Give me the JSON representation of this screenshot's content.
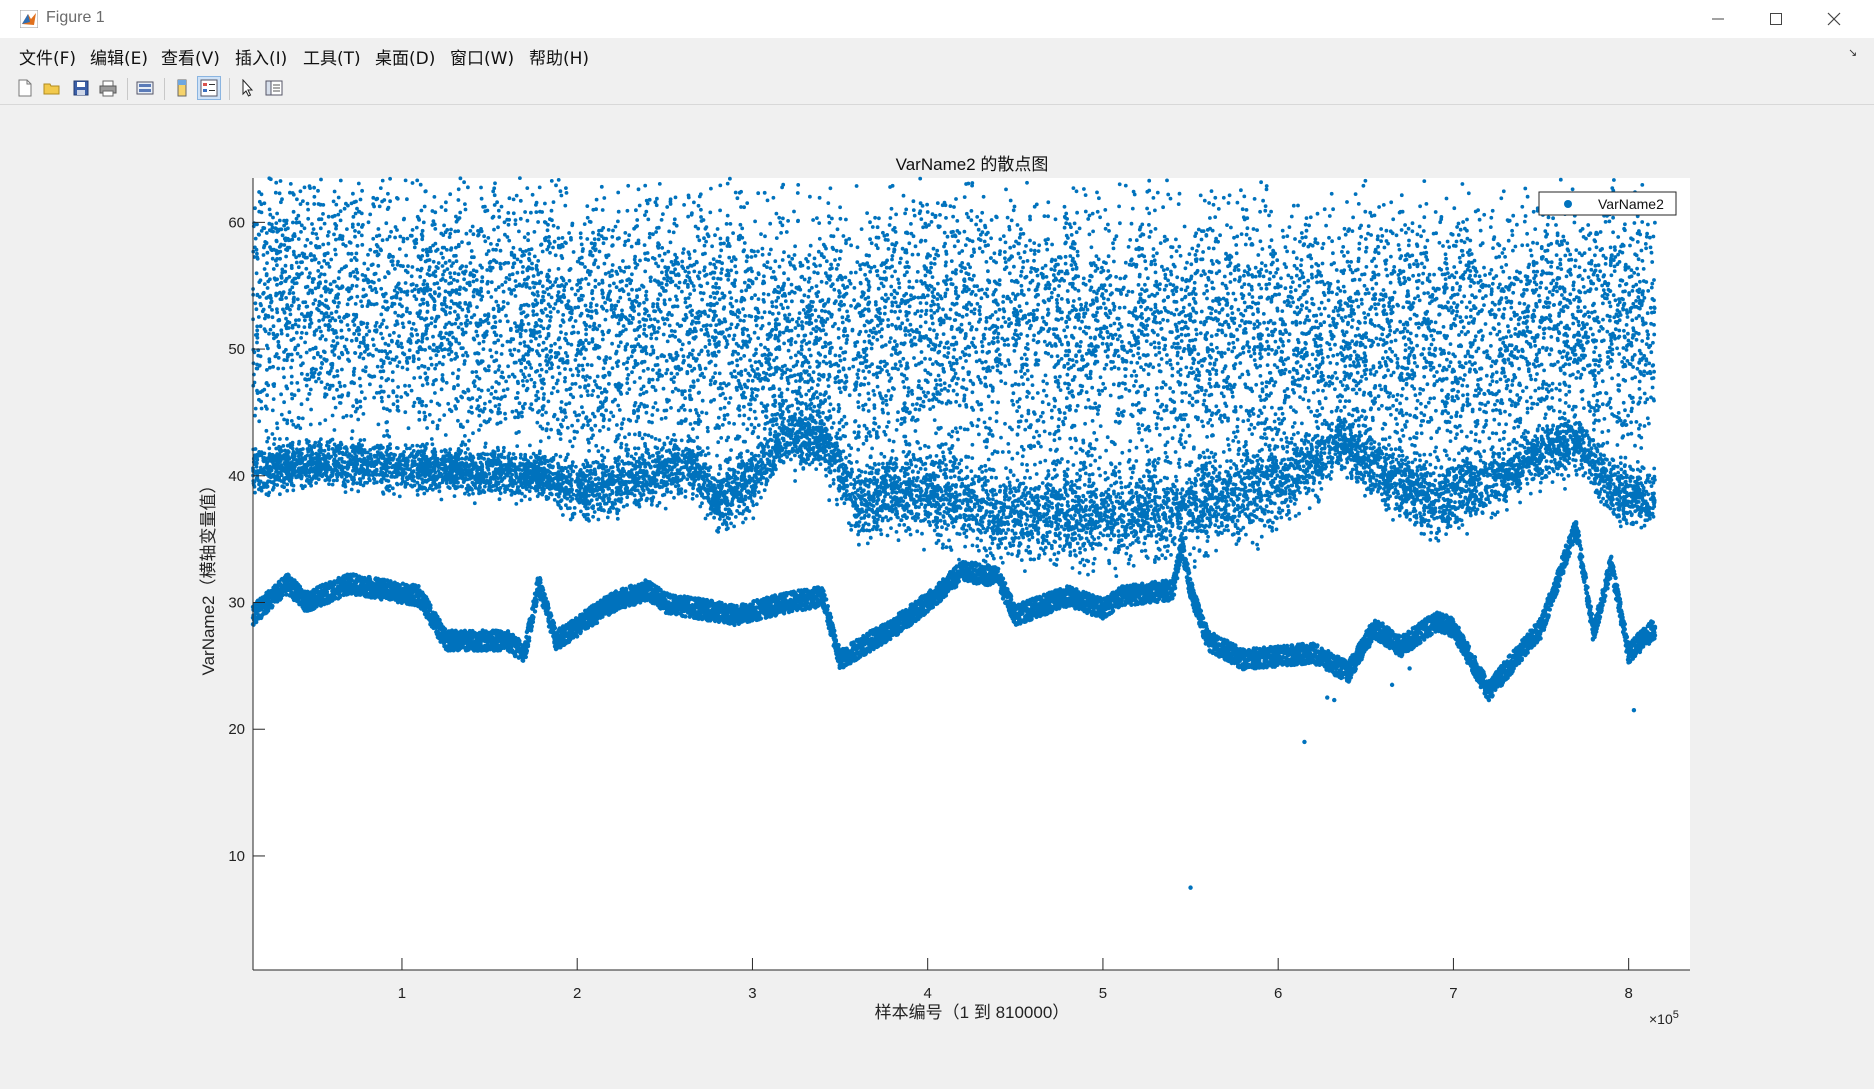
{
  "window": {
    "title": "Figure 1",
    "controls": [
      "minimize",
      "maximize",
      "close"
    ]
  },
  "menu": {
    "items": [
      "文件(F)",
      "编辑(E)",
      "查看(V)",
      "插入(I)",
      "工具(T)",
      "桌面(D)",
      "窗口(W)",
      "帮助(H)"
    ]
  },
  "toolbar": {
    "buttons": [
      {
        "name": "new-figure-icon"
      },
      {
        "name": "open-file-icon"
      },
      {
        "name": "save-icon"
      },
      {
        "name": "print-icon"
      },
      {
        "name": "link-plot-icon"
      },
      {
        "name": "colorbar-icon"
      },
      {
        "name": "legend-icon",
        "active": true
      },
      {
        "name": "pointer-icon"
      },
      {
        "name": "property-editor-icon"
      }
    ]
  },
  "colors": {
    "marker": "#0072bd",
    "axes_bg": "#ffffff",
    "figure_bg": "#f0f0f0"
  },
  "chart_data": {
    "type": "scatter",
    "title": "VarName2 的散点图",
    "xlabel": "样本编号（1 到 810000）",
    "ylabel": "VarName2（横轴变量值）",
    "x_exponent_label": "×10",
    "x_exponent_power": "5",
    "xlim": [
      15000,
      835000
    ],
    "ylim": [
      1,
      63.5
    ],
    "xticks": [
      1,
      2,
      3,
      4,
      5,
      6,
      7,
      8
    ],
    "xtick_labels": [
      "1",
      "2",
      "3",
      "4",
      "5",
      "6",
      "7",
      "8"
    ],
    "yticks": [
      10,
      20,
      30,
      40,
      50,
      60
    ],
    "ytick_labels": [
      "10",
      "20",
      "30",
      "40",
      "50",
      "60"
    ],
    "grid": false,
    "legend": {
      "entries": [
        "VarName2"
      ],
      "position": "top-right"
    },
    "series": [
      {
        "name": "VarName2",
        "bands": [
          {
            "label": "upper-scatter",
            "x": [
              15000,
              70000,
              130000,
              200000,
              280000,
              300000,
              360000,
              420000,
              480000,
              540000,
              600000,
              660000,
              720000,
              780000,
              815000
            ],
            "center": [
              55,
              54,
              53,
              53,
              53,
              52,
              52,
              53,
              52,
              52,
              52,
              52,
              52,
              53,
              53
            ],
            "spread": [
              5,
              5,
              5,
              5,
              5,
              5,
              5,
              5,
              5,
              5,
              5,
              5,
              5,
              5,
              5
            ]
          },
          {
            "label": "middle-band",
            "x": [
              15000,
              60000,
              120000,
              180000,
              205000,
              240000,
              265000,
              280000,
              300000,
              320000,
              340000,
              360000,
              385000,
              420000,
              440000,
              480000,
              520000,
              560000,
              590000,
              620000,
              635000,
              660000,
              690000,
              740000,
              770000,
              790000,
              815000
            ],
            "center": [
              40.5,
              41,
              40.5,
              40,
              39,
              40,
              41,
              38,
              40,
              43.5,
              43,
              38,
              39,
              38,
              37,
              37,
              37,
              38,
              39,
              41,
              43,
              40,
              38,
              41,
              43,
              39,
              38
            ],
            "spread": [
              1.5,
              1.5,
              1.5,
              1.5,
              2,
              2,
              2,
              2,
              2,
              2,
              2,
              2.5,
              2.5,
              3,
              3,
              3,
              3,
              3,
              3,
              2.5,
              2,
              2,
              2.5,
              2,
              2,
              2,
              2
            ]
          },
          {
            "label": "lower-band",
            "x": [
              15000,
              35000,
              45000,
              70000,
              90000,
              110000,
              125000,
              160000,
              170000,
              178000,
              188000,
              220000,
              240000,
              250000,
              290000,
              320000,
              340000,
              350000,
              380000,
              400000,
              420000,
              440000,
              450000,
              480000,
              500000,
              510000,
              540000,
              545000,
              550000,
              560000,
              580000,
              620000,
              640000,
              655000,
              670000,
              690000,
              700000,
              720000,
              750000,
              760000,
              770000,
              780000,
              790000,
              800000,
              815000
            ],
            "center": [
              29,
              31.5,
              30,
              31.5,
              31,
              30.5,
              27,
              27,
              26,
              31.5,
              27,
              30,
              31,
              30,
              29,
              30,
              30.5,
              25.5,
              28,
              30,
              32.5,
              32,
              29,
              30.5,
              29.5,
              30.5,
              31,
              34.5,
              31,
              27,
              25.5,
              26,
              24.5,
              28,
              26.5,
              28.5,
              28,
              23,
              28,
              32,
              36,
              27.5,
              33,
              26,
              28
            ],
            "thickness": 0.8
          }
        ],
        "outliers": [
          {
            "x": 550000,
            "y": 7.5
          },
          {
            "x": 615000,
            "y": 19
          },
          {
            "x": 803000,
            "y": 21.5
          },
          {
            "x": 628000,
            "y": 22.5
          },
          {
            "x": 632000,
            "y": 22.3
          },
          {
            "x": 665000,
            "y": 23.5
          },
          {
            "x": 675000,
            "y": 24.8
          }
        ]
      }
    ]
  }
}
